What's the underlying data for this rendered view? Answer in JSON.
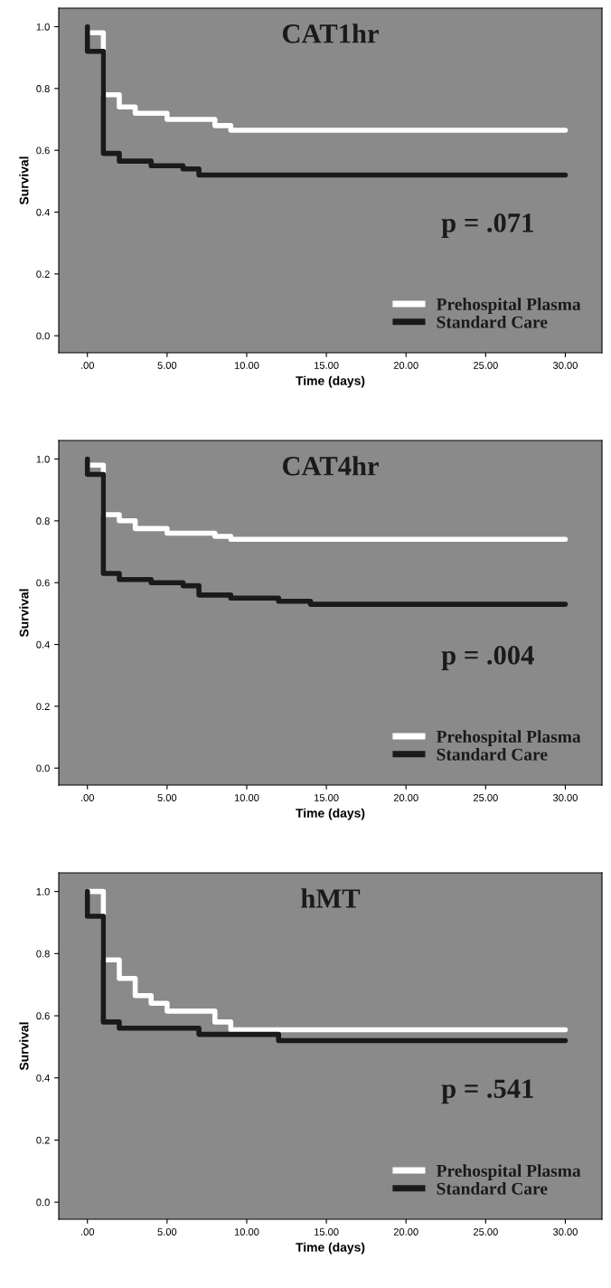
{
  "chart_data": [
    {
      "type": "step",
      "title": "CAT1hr",
      "xlabel": "Time (days)",
      "ylabel": "Survival",
      "annotations": [
        "p = .071"
      ],
      "legend": "bottom right",
      "grid": false,
      "xlim": [
        -1.8,
        32.3
      ],
      "ylim": [
        -0.055,
        1.06
      ],
      "xticks": [
        {
          "value": 0,
          "label": ".00"
        },
        {
          "value": 5,
          "label": "5.00"
        },
        {
          "value": 10,
          "label": "10.00"
        },
        {
          "value": 15,
          "label": "15.00"
        },
        {
          "value": 20,
          "label": "20.00"
        },
        {
          "value": 25,
          "label": "25.00"
        },
        {
          "value": 30,
          "label": "30.00"
        }
      ],
      "yticks": [
        {
          "value": 0,
          "label": "0.0"
        },
        {
          "value": 0.2,
          "label": "0.2"
        },
        {
          "value": 0.4,
          "label": "0.4"
        },
        {
          "value": 0.6,
          "label": "0.6"
        },
        {
          "value": 0.8,
          "label": "0.8"
        },
        {
          "value": 1,
          "label": "1.0"
        }
      ],
      "series": [
        {
          "name": "Prehospital Plasma",
          "color": "#ffffff",
          "x": [
            0,
            1,
            2,
            3,
            5,
            8,
            9,
            30
          ],
          "values": [
            0.98,
            0.78,
            0.74,
            0.72,
            0.7,
            0.68,
            0.665,
            0.665
          ]
        },
        {
          "name": "Standard Care",
          "color": "#1a1a1a",
          "x": [
            0,
            0,
            1,
            2,
            4,
            6,
            7,
            30
          ],
          "values": [
            1.0,
            0.92,
            0.59,
            0.565,
            0.55,
            0.54,
            0.52,
            0.52
          ]
        }
      ]
    },
    {
      "type": "step",
      "title": "CAT4hr",
      "xlabel": "Time (days)",
      "ylabel": "Survival",
      "annotations": [
        "p = .004"
      ],
      "legend": "bottom right",
      "grid": false,
      "xlim": [
        -1.8,
        32.3
      ],
      "ylim": [
        -0.055,
        1.06
      ],
      "xticks": [
        {
          "value": 0,
          "label": ".00"
        },
        {
          "value": 5,
          "label": "5.00"
        },
        {
          "value": 10,
          "label": "10.00"
        },
        {
          "value": 15,
          "label": "15.00"
        },
        {
          "value": 20,
          "label": "20.00"
        },
        {
          "value": 25,
          "label": "25.00"
        },
        {
          "value": 30,
          "label": "30.00"
        }
      ],
      "yticks": [
        {
          "value": 0,
          "label": "0.0"
        },
        {
          "value": 0.2,
          "label": "0.2"
        },
        {
          "value": 0.4,
          "label": "0.4"
        },
        {
          "value": 0.6,
          "label": "0.6"
        },
        {
          "value": 0.8,
          "label": "0.8"
        },
        {
          "value": 1,
          "label": "1.0"
        }
      ],
      "series": [
        {
          "name": "Prehospital Plasma",
          "color": "#ffffff",
          "x": [
            0,
            1,
            2,
            3,
            5,
            8,
            9,
            30
          ],
          "values": [
            0.98,
            0.82,
            0.8,
            0.775,
            0.76,
            0.75,
            0.74,
            0.74
          ]
        },
        {
          "name": "Standard Care",
          "color": "#1a1a1a",
          "x": [
            0,
            0,
            1,
            2,
            4,
            6,
            7,
            9,
            12,
            14,
            30
          ],
          "values": [
            1.0,
            0.95,
            0.63,
            0.61,
            0.6,
            0.59,
            0.56,
            0.55,
            0.54,
            0.53,
            0.53
          ]
        }
      ]
    },
    {
      "type": "step",
      "title": "hMT",
      "xlabel": "Time (days)",
      "ylabel": "Survival",
      "annotations": [
        "p = .541"
      ],
      "legend": "bottom right",
      "grid": false,
      "xlim": [
        -1.8,
        32.3
      ],
      "ylim": [
        -0.055,
        1.06
      ],
      "xticks": [
        {
          "value": 0,
          "label": ".00"
        },
        {
          "value": 5,
          "label": "5.00"
        },
        {
          "value": 10,
          "label": "10.00"
        },
        {
          "value": 15,
          "label": "15.00"
        },
        {
          "value": 20,
          "label": "20.00"
        },
        {
          "value": 25,
          "label": "25.00"
        },
        {
          "value": 30,
          "label": "30.00"
        }
      ],
      "yticks": [
        {
          "value": 0,
          "label": "0.0"
        },
        {
          "value": 0.2,
          "label": "0.2"
        },
        {
          "value": 0.4,
          "label": "0.4"
        },
        {
          "value": 0.6,
          "label": "0.6"
        },
        {
          "value": 0.8,
          "label": "0.8"
        },
        {
          "value": 1,
          "label": "1.0"
        }
      ],
      "series": [
        {
          "name": "Prehospital Plasma",
          "color": "#ffffff",
          "x": [
            0,
            1,
            2,
            3,
            4,
            5,
            8,
            9,
            30
          ],
          "values": [
            1.0,
            0.78,
            0.72,
            0.665,
            0.64,
            0.615,
            0.58,
            0.555,
            0.555
          ]
        },
        {
          "name": "Standard Care",
          "color": "#1a1a1a",
          "x": [
            0,
            0,
            1,
            2,
            7,
            12,
            30
          ],
          "values": [
            1.0,
            0.92,
            0.58,
            0.56,
            0.54,
            0.52,
            0.52
          ]
        }
      ]
    }
  ]
}
